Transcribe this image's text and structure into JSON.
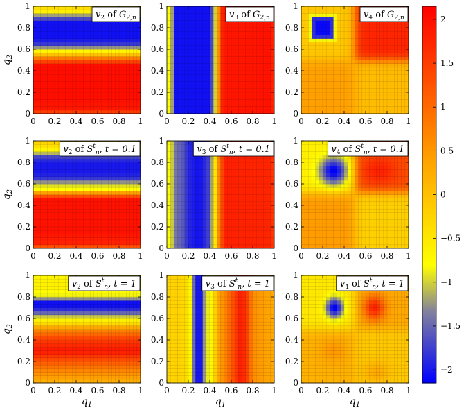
{
  "chart_data": {
    "type": "heatmap",
    "grid": {
      "nx": 30,
      "ny": 30
    },
    "xlim": [
      0,
      1
    ],
    "ylim": [
      0,
      1
    ],
    "x_ticks": [
      "0",
      "0.2",
      "0.4",
      "0.6",
      "0.8",
      "1"
    ],
    "y_ticks": [
      "0",
      "0.2",
      "0.4",
      "0.6",
      "0.8",
      "1"
    ],
    "xlabel": "q1",
    "ylabel": "q2",
    "colorbar": {
      "range": [
        -2.15,
        2.15
      ],
      "ticks": [
        "2",
        "1.5",
        "1",
        "0.5",
        "0",
        "−0.5",
        "−1",
        "−1.5",
        "−2"
      ],
      "tick_values": [
        2,
        1.5,
        1,
        0.5,
        0,
        -0.5,
        -1,
        -1.5,
        -2
      ],
      "colors": [
        {
          "v": -2.15,
          "c": "#0000ff"
        },
        {
          "v": -1.35,
          "c": "#7f7fa0"
        },
        {
          "v": -0.8,
          "c": "#ffff00"
        },
        {
          "v": 0.35,
          "c": "#ffa500"
        },
        {
          "v": 2.15,
          "c": "#ff0000"
        }
      ]
    },
    "panels": [
      {
        "title": {
          "v": "v",
          "sub": "2",
          "of": " of ",
          "sym": "G",
          "sym_sub": "2,n",
          "extra": ""
        },
        "field": {
          "kind": "y-bands",
          "profile": [
            [
              0,
              1.3
            ],
            [
              0.05,
              1.9
            ],
            [
              0.15,
              2.0
            ],
            [
              0.45,
              2.0
            ],
            [
              0.5,
              1.2
            ],
            [
              0.55,
              0.0
            ],
            [
              0.6,
              -1.0
            ],
            [
              0.65,
              -1.8
            ],
            [
              0.7,
              -2.05
            ],
            [
              0.85,
              -2.05
            ],
            [
              0.9,
              -1.5
            ],
            [
              0.95,
              -0.6
            ],
            [
              1.0,
              -0.3
            ]
          ]
        }
      },
      {
        "title": {
          "v": "v",
          "sub": "3",
          "of": " of ",
          "sym": "G",
          "sym_sub": "2,n",
          "extra": ""
        },
        "field": {
          "kind": "x-bands",
          "profile": [
            [
              0,
              -0.6
            ],
            [
              0.05,
              -1.2
            ],
            [
              0.08,
              -2.05
            ],
            [
              0.4,
              -2.05
            ],
            [
              0.45,
              -1.0
            ],
            [
              0.48,
              0.5
            ],
            [
              0.52,
              1.9
            ],
            [
              0.95,
              1.95
            ],
            [
              1.0,
              1.7
            ]
          ]
        }
      },
      {
        "title": {
          "v": "v",
          "sub": "4",
          "of": " of ",
          "sym": "G",
          "sym_sub": "2,n",
          "extra": ""
        },
        "field": {
          "kind": "quad",
          "qx": 0.5,
          "qy": 0.5,
          "vals": {
            "ll": 0.4,
            "lr": 0.05,
            "ul": -0.1,
            "ur": 1.75
          },
          "blob": {
            "cx": 0.2,
            "cy": 0.8,
            "sx": 0.11,
            "sy": 0.11,
            "amp": -2.0,
            "square": true
          }
        }
      },
      {
        "title": {
          "v": "v",
          "sub": "2",
          "of": " of ",
          "sym": "S",
          "sym_sub": "n",
          "sym_sup": "t",
          "extra": ", t = 0.1"
        },
        "field": {
          "kind": "y-bands",
          "profile": [
            [
              0,
              1.0
            ],
            [
              0.05,
              1.8
            ],
            [
              0.15,
              1.95
            ],
            [
              0.45,
              1.95
            ],
            [
              0.5,
              1.0
            ],
            [
              0.55,
              -0.8
            ],
            [
              0.6,
              -1.0
            ],
            [
              0.65,
              -1.8
            ],
            [
              0.7,
              -2.0
            ],
            [
              0.8,
              -2.0
            ],
            [
              0.85,
              -1.7
            ],
            [
              0.9,
              -0.8
            ],
            [
              0.95,
              -0.4
            ],
            [
              1.0,
              -0.2
            ]
          ]
        }
      },
      {
        "title": {
          "v": "v",
          "sub": "3",
          "of": " of ",
          "sym": "S",
          "sym_sub": "n",
          "sym_sup": "t",
          "extra": ", t = 0.1"
        },
        "field": {
          "kind": "x-bands",
          "profile": [
            [
              0,
              -0.7
            ],
            [
              0.04,
              -0.9
            ],
            [
              0.08,
              -1.4
            ],
            [
              0.15,
              -1.6
            ],
            [
              0.2,
              -1.9
            ],
            [
              0.3,
              -2.05
            ],
            [
              0.38,
              -1.8
            ],
            [
              0.44,
              -0.8
            ],
            [
              0.5,
              1.2
            ],
            [
              0.55,
              1.8
            ],
            [
              0.95,
              1.75
            ],
            [
              1.0,
              1.5
            ]
          ]
        }
      },
      {
        "title": {
          "v": "v",
          "sub": "4",
          "of": " of ",
          "sym": "S",
          "sym_sub": "n",
          "sym_sup": "t",
          "extra": ", t = 0.1"
        },
        "field": {
          "kind": "quad",
          "qx": 0.5,
          "qy": 0.52,
          "vals": {
            "ll": 0.45,
            "lr": -0.2,
            "ul": -0.6,
            "ur": 1.3
          },
          "blob": {
            "cx": 0.3,
            "cy": 0.72,
            "sx": 0.09,
            "sy": 0.09,
            "amp": -1.6,
            "square": false
          },
          "blob2": {
            "cx": 0.72,
            "cy": 0.72,
            "sx": 0.12,
            "sy": 0.09,
            "amp": 0.5
          }
        }
      },
      {
        "title": {
          "v": "v",
          "sub": "2",
          "of": " of ",
          "sym": "S",
          "sym_sub": "n",
          "sym_sup": "t",
          "extra": ", t = 1"
        },
        "field": {
          "kind": "y-bands",
          "profile": [
            [
              0,
              0.2
            ],
            [
              0.1,
              0.6
            ],
            [
              0.2,
              1.2
            ],
            [
              0.3,
              1.9
            ],
            [
              0.4,
              1.5
            ],
            [
              0.5,
              0.6
            ],
            [
              0.55,
              -0.3
            ],
            [
              0.6,
              -0.8
            ],
            [
              0.65,
              -1.5
            ],
            [
              0.7,
              -2.05
            ],
            [
              0.75,
              -2.05
            ],
            [
              0.8,
              -0.9
            ],
            [
              0.9,
              -0.6
            ],
            [
              1.0,
              -0.7
            ]
          ]
        }
      },
      {
        "title": {
          "v": "v",
          "sub": "3",
          "of": " of ",
          "sym": "S",
          "sym_sub": "n",
          "sym_sup": "t",
          "extra": ", t = 1"
        },
        "field": {
          "kind": "x-bands",
          "profile": [
            [
              0,
              -0.3
            ],
            [
              0.1,
              -0.2
            ],
            [
              0.2,
              -0.4
            ],
            [
              0.24,
              -1.2
            ],
            [
              0.27,
              -2.0
            ],
            [
              0.32,
              -2.0
            ],
            [
              0.36,
              -1.0
            ],
            [
              0.42,
              -0.7
            ],
            [
              0.48,
              0.3
            ],
            [
              0.56,
              0.8
            ],
            [
              0.62,
              1.3
            ],
            [
              0.68,
              1.8
            ],
            [
              0.74,
              1.6
            ],
            [
              0.8,
              0.6
            ],
            [
              0.9,
              0.4
            ],
            [
              1.0,
              0.3
            ]
          ]
        }
      },
      {
        "title": {
          "v": "v",
          "sub": "4",
          "of": " of ",
          "sym": "S",
          "sym_sub": "n",
          "sym_sup": "t",
          "extra": ", t = 1"
        },
        "field": {
          "kind": "quad",
          "qx": 0.5,
          "qy": 0.5,
          "vals": {
            "ll": 0.2,
            "lr": -0.1,
            "ul": -0.5,
            "ur": 0.3
          },
          "blob": {
            "cx": 0.31,
            "cy": 0.7,
            "sx": 0.06,
            "sy": 0.07,
            "amp": -1.7,
            "square": false
          },
          "blob2": {
            "cx": 0.68,
            "cy": 0.7,
            "sx": 0.07,
            "sy": 0.08,
            "amp": 1.5
          },
          "blob3": {
            "cx": 0.3,
            "cy": 0.3,
            "sx": 0.08,
            "sy": 0.08,
            "amp": 0.3
          },
          "blob4": {
            "cx": 0.7,
            "cy": 0.1,
            "sx": 0.08,
            "sy": 0.07,
            "amp": 0.4
          }
        }
      }
    ]
  }
}
